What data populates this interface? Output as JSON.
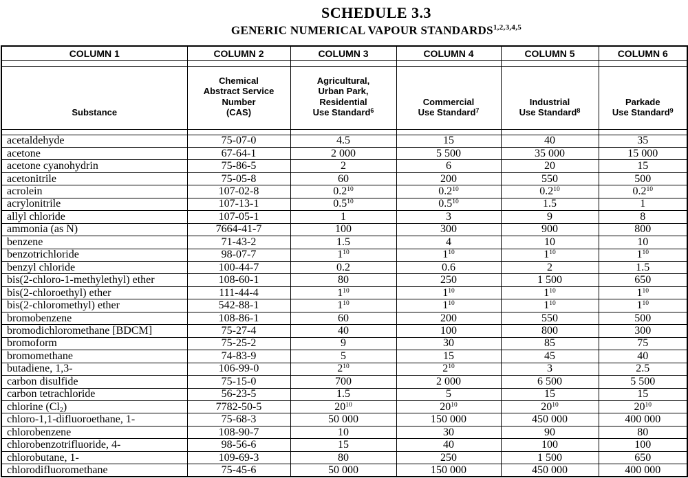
{
  "title": "SCHEDULE 3.3",
  "subtitle": "GENERIC NUMERICAL VAPOUR STANDARDS",
  "subtitle_superscript": "1,2,3,4,5",
  "table": {
    "column_headers": [
      "COLUMN 1",
      "COLUMN 2",
      "COLUMN 3",
      "COLUMN 4",
      "COLUMN 5",
      "COLUMN 6"
    ],
    "sub_headers": [
      "Substance",
      "Chemical\nAbstract Service\nNumber\n(CAS)",
      "Agricultural,\nUrban Park,\nResidential\nUse Standard^6",
      "Commercial\nUse Standard^7",
      "Industrial\nUse Standard^8",
      "Parkade\nUse Standard^9"
    ],
    "rows": [
      [
        "acetaldehyde",
        "75-07-0",
        "4.5",
        "15",
        "40",
        "35"
      ],
      [
        "acetone",
        "67-64-1",
        "2 000",
        "5 500",
        "35 000",
        "15 000"
      ],
      [
        "acetone cyanohydrin",
        "75-86-5",
        "2",
        "6",
        "20",
        "15"
      ],
      [
        "acetonitrile",
        "75-05-8",
        "60",
        "200",
        "550",
        "500"
      ],
      [
        "acrolein",
        "107-02-8",
        "0.2^10",
        "0.2^10",
        "0.2^10",
        "0.2^10"
      ],
      [
        "acrylonitrile",
        "107-13-1",
        "0.5^10",
        "0.5^10",
        "1.5",
        "1"
      ],
      [
        "allyl chloride",
        "107-05-1",
        "1",
        "3",
        "9",
        "8"
      ],
      [
        "ammonia (as N)",
        "7664-41-7",
        "100",
        "300",
        "900",
        "800"
      ],
      [
        "benzene",
        "71-43-2",
        "1.5",
        "4",
        "10",
        "10"
      ],
      [
        "benzotrichloride",
        "98-07-7",
        "1^10",
        "1^10",
        "1^10",
        "1^10"
      ],
      [
        "benzyl chloride",
        "100-44-7",
        "0.2",
        "0.6",
        "2",
        "1.5"
      ],
      [
        "bis(2-chloro-1-methylethyl) ether",
        "108-60-1",
        "80",
        "250",
        "1 500",
        "650"
      ],
      [
        "bis(2-chloroethyl) ether",
        "111-44-4",
        "1^10",
        "1^10",
        "1^10",
        "1^10"
      ],
      [
        "bis(2-chloromethyl) ether",
        "542-88-1",
        "1^10",
        "1^10",
        "1^10",
        "1^10"
      ],
      [
        "bromobenzene",
        "108-86-1",
        "60",
        "200",
        "550",
        "500"
      ],
      [
        "bromodichloromethane [BDCM]",
        "75-27-4",
        "40",
        "100",
        "800",
        "300"
      ],
      [
        "bromoform",
        "75-25-2",
        "9",
        "30",
        "85",
        "75"
      ],
      [
        "bromomethane",
        "74-83-9",
        "5",
        "15",
        "45",
        "40"
      ],
      [
        "butadiene, 1,3-",
        "106-99-0",
        "2^10",
        "2^10",
        "3",
        "2.5"
      ],
      [
        "carbon disulfide",
        "75-15-0",
        "700",
        "2 000",
        "6 500",
        "5 500"
      ],
      [
        "carbon tetrachloride",
        "56-23-5",
        "1.5",
        "5",
        "15",
        "15"
      ],
      [
        "chlorine (Cl~2)",
        "7782-50-5",
        "20^10",
        "20^10",
        "20^10",
        "20^10"
      ],
      [
        "chloro-1,1-difluoroethane, 1-",
        "75-68-3",
        "50 000",
        "150 000",
        "450 000",
        "400 000"
      ],
      [
        "chlorobenzene",
        "108-90-7",
        "10",
        "30",
        "90",
        "80"
      ],
      [
        "chlorobenzotrifluoride, 4-",
        "98-56-6",
        "15",
        "40",
        "100",
        "100"
      ],
      [
        "chlorobutane, 1-",
        "109-69-3",
        "80",
        "250",
        "1 500",
        "650"
      ],
      [
        "chlorodifluoromethane",
        "75-45-6",
        "50 000",
        "150 000",
        "450 000",
        "400 000"
      ]
    ]
  }
}
